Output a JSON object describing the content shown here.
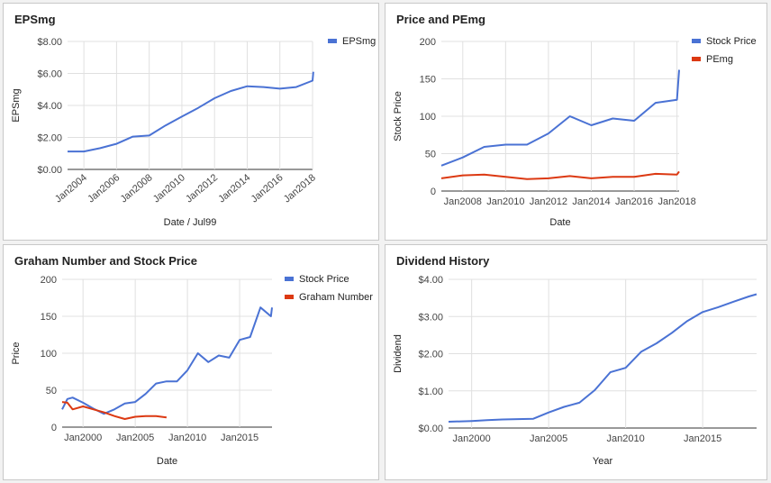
{
  "chart_data": [
    {
      "type": "line",
      "title": "EPSmg",
      "xlabel": "Date / Jul99",
      "ylabel": "EPSmg",
      "ylim": [
        0,
        8
      ],
      "y_ticks": [
        0,
        2,
        4,
        6,
        8
      ],
      "y_tick_labels": [
        "$0.00",
        "$2.00",
        "$4.00",
        "$6.00",
        "$8.00"
      ],
      "x_ticks": [
        2004,
        2006,
        2008,
        2010,
        2012,
        2014,
        2016,
        2018
      ],
      "x_tick_labels": [
        "Jan2004",
        "Jan2006",
        "Jan2008",
        "Jan2010",
        "Jan2012",
        "Jan2014",
        "Jan2016",
        "Jan2018"
      ],
      "xlim": [
        2003,
        2018
      ],
      "legend": "right",
      "grid": true,
      "series": [
        {
          "name": "EPSmg",
          "color": "#4a72d4",
          "x": [
            2003,
            2004,
            2005,
            2006,
            2007,
            2008,
            2009,
            2010,
            2011,
            2012,
            2013,
            2014,
            2015,
            2016,
            2017,
            2018,
            2018.05
          ],
          "y": [
            1.12,
            1.12,
            1.33,
            1.6,
            2.05,
            2.12,
            2.75,
            3.3,
            3.85,
            4.45,
            4.9,
            5.2,
            5.15,
            5.05,
            5.15,
            5.55,
            6.1
          ]
        }
      ]
    },
    {
      "type": "line",
      "title": "Price and PEmg",
      "xlabel": "Date",
      "ylabel": "Stock Price",
      "ylim": [
        0,
        200
      ],
      "y_ticks": [
        0,
        50,
        100,
        150,
        200
      ],
      "y_tick_labels": [
        "0",
        "50",
        "100",
        "150",
        "200"
      ],
      "x_ticks": [
        2008,
        2010,
        2012,
        2014,
        2016,
        2018
      ],
      "x_tick_labels": [
        "Jan2008",
        "Jan2010",
        "Jan2012",
        "Jan2014",
        "Jan2016",
        "Jan2018"
      ],
      "xlim": [
        2007,
        2018.1
      ],
      "legend": "right",
      "grid": true,
      "series": [
        {
          "name": "Stock Price",
          "color": "#4a72d4",
          "x": [
            2007,
            2008,
            2009,
            2010,
            2011,
            2012,
            2013,
            2014,
            2015,
            2016,
            2017,
            2018,
            2018.1
          ],
          "y": [
            34,
            45,
            59,
            62,
            62,
            77,
            100,
            88,
            97,
            94,
            118,
            122,
            162
          ]
        },
        {
          "name": "PEmg",
          "color": "#dc3912",
          "x": [
            2007,
            2008,
            2009,
            2010,
            2011,
            2012,
            2013,
            2014,
            2015,
            2016,
            2017,
            2018,
            2018.1
          ],
          "y": [
            17,
            21,
            22,
            19,
            16,
            17,
            20,
            17,
            19,
            19,
            23,
            22,
            26
          ]
        }
      ]
    },
    {
      "type": "line",
      "title": "Graham Number and Stock Price",
      "xlabel": "Date",
      "ylabel": "Price",
      "ylim": [
        0,
        200
      ],
      "y_ticks": [
        0,
        50,
        100,
        150,
        200
      ],
      "y_tick_labels": [
        "0",
        "50",
        "100",
        "150",
        "200"
      ],
      "x_ticks": [
        2000,
        2005,
        2010,
        2015
      ],
      "x_tick_labels": [
        "Jan2000",
        "Jan2005",
        "Jan2010",
        "Jan2015"
      ],
      "xlim": [
        1998,
        2018.1
      ],
      "legend": "right",
      "grid": true,
      "series": [
        {
          "name": "Stock Price",
          "color": "#4a72d4",
          "x": [
            1998,
            1998.5,
            1999,
            2000,
            2001,
            2002,
            2003,
            2004,
            2005,
            2006,
            2007,
            2008,
            2009,
            2010,
            2011,
            2012,
            2013,
            2014,
            2015,
            2016,
            2017,
            2018,
            2018.1
          ],
          "y": [
            24,
            38,
            40,
            33,
            25,
            18,
            24,
            32,
            34,
            45,
            59,
            62,
            62,
            77,
            100,
            88,
            97,
            94,
            118,
            122,
            162,
            150,
            162
          ]
        },
        {
          "name": "Graham Number",
          "color": "#dc3912",
          "x": [
            1998,
            1998.5,
            1999,
            2000,
            2001,
            2002,
            2003,
            2004,
            2005,
            2006,
            2007,
            2008
          ],
          "y": [
            34,
            33,
            24,
            28,
            24,
            20,
            15,
            11,
            14,
            15,
            15,
            13
          ]
        }
      ]
    },
    {
      "type": "line",
      "title": "Dividend History",
      "xlabel": "Year",
      "ylabel": "Dividend",
      "ylim": [
        0,
        4
      ],
      "y_ticks": [
        0,
        1,
        2,
        3,
        4
      ],
      "y_tick_labels": [
        "$0.00",
        "$1.00",
        "$2.00",
        "$3.00",
        "$4.00"
      ],
      "x_ticks": [
        2000,
        2005,
        2010,
        2015
      ],
      "x_tick_labels": [
        "Jan2000",
        "Jan2005",
        "Jan2010",
        "Jan2015"
      ],
      "xlim": [
        1998.5,
        2018.5
      ],
      "legend": "none",
      "grid": true,
      "series": [
        {
          "name": "",
          "color": "#4a72d4",
          "x": [
            1998.5,
            2000,
            2001,
            2002,
            2003,
            2004,
            2005,
            2006,
            2007,
            2008,
            2009,
            2010,
            2011,
            2012,
            2013,
            2014,
            2015,
            2016,
            2017,
            2018,
            2018.5
          ],
          "y": [
            0.17,
            0.19,
            0.21,
            0.23,
            0.24,
            0.25,
            0.42,
            0.57,
            0.68,
            1.02,
            1.5,
            1.62,
            2.05,
            2.28,
            2.56,
            2.88,
            3.12,
            3.25,
            3.4,
            3.54,
            3.6
          ]
        }
      ]
    }
  ]
}
